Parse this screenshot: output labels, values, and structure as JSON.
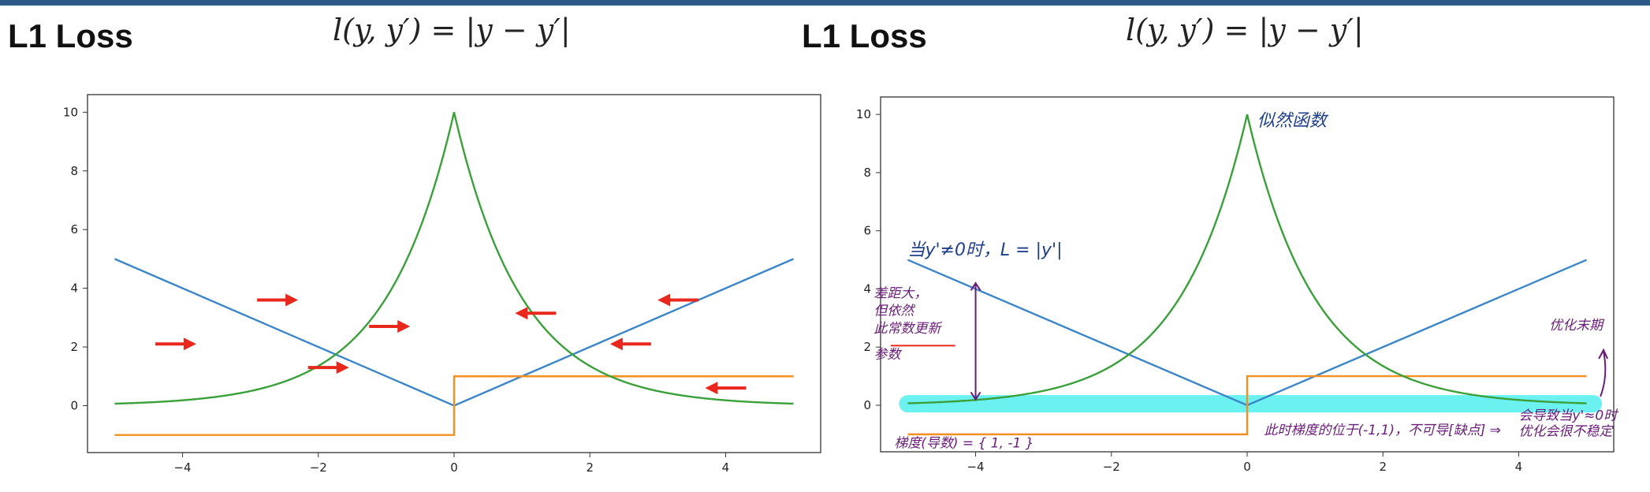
{
  "slide": {
    "left_heading": "L1 Loss",
    "left_formula": "l(y, y′) = |y − y′|",
    "right_heading": "L1 Loss",
    "right_formula": "l(y, y′) = |y − y′|"
  },
  "colors": {
    "loss": "#3a86c8",
    "gradient": "#f39020",
    "likelihood": "#3aa03a",
    "arrow": "#e8281c",
    "ink_blue": "#1e3f8a",
    "ink_purple": "#6a1d78",
    "highlight": "#5df0f0"
  },
  "chart_data": [
    {
      "type": "line",
      "title": "",
      "xlabel": "",
      "ylabel": "",
      "xlim": [
        -5.4,
        5.4
      ],
      "ylim": [
        -1.6,
        10.6
      ],
      "x_ticks": [
        -4,
        -2,
        0,
        2,
        4
      ],
      "y_ticks": [
        0,
        2,
        4,
        6,
        8,
        10
      ],
      "grid": false,
      "series": [
        {
          "kind": "abs",
          "x": [
            -5,
            0,
            5
          ],
          "y": [
            5,
            0,
            5
          ]
        },
        {
          "kind": "sign",
          "x": [
            -5,
            0,
            0,
            5
          ],
          "y": [
            -1,
            -1,
            1,
            1
          ]
        },
        {
          "kind": "exp",
          "x": [
            -5,
            0,
            5
          ],
          "y": [
            0.067,
            10,
            0.067
          ]
        }
      ],
      "annotations": {
        "arrows": [
          {
            "x": -4.1,
            "y": 2.1,
            "dir": "right"
          },
          {
            "x": -2.6,
            "y": 3.6,
            "dir": "right"
          },
          {
            "x": -0.95,
            "y": 2.7,
            "dir": "right"
          },
          {
            "x": -1.85,
            "y": 1.3,
            "dir": "right"
          },
          {
            "x": 1.2,
            "y": 3.15,
            "dir": "left"
          },
          {
            "x": 2.6,
            "y": 2.1,
            "dir": "left"
          },
          {
            "x": 3.3,
            "y": 3.6,
            "dir": "left"
          },
          {
            "x": 4.0,
            "y": 0.6,
            "dir": "left"
          }
        ]
      }
    },
    {
      "type": "line",
      "title": "",
      "xlabel": "",
      "ylabel": "",
      "xlim": [
        -5.4,
        5.4
      ],
      "ylim": [
        -1.6,
        10.6
      ],
      "x_ticks": [
        -4,
        -2,
        0,
        2,
        4
      ],
      "y_ticks": [
        0,
        2,
        4,
        6,
        8,
        10
      ],
      "grid": false,
      "series": [
        {
          "kind": "abs",
          "x": [
            -5,
            0,
            5
          ],
          "y": [
            5,
            0,
            5
          ]
        },
        {
          "kind": "sign",
          "x": [
            -5,
            0,
            0,
            5
          ],
          "y": [
            -1,
            -1,
            1,
            1
          ]
        },
        {
          "kind": "exp",
          "x": [
            -5,
            0,
            5
          ],
          "y": [
            0.067,
            10,
            0.067
          ]
        }
      ],
      "annotations": {
        "handwritten": [
          {
            "text": "似然函数",
            "x": 0.15,
            "y": 9.6,
            "ink": "blue"
          },
          {
            "text": "当y'≠0时，L = |y'|",
            "x": -5.0,
            "y": 5.15,
            "ink": "blue"
          },
          {
            "text": "差距大，",
            "x": -5.5,
            "y": 3.7,
            "ink": "purple"
          },
          {
            "text": "但依然",
            "x": -5.5,
            "y": 3.1,
            "ink": "purple"
          },
          {
            "text": "此常数更新",
            "x": -5.5,
            "y": 2.5,
            "ink": "purple"
          },
          {
            "text": "参数",
            "x": -5.5,
            "y": 1.6,
            "ink": "purple"
          },
          {
            "text": "优化末期",
            "x": 4.45,
            "y": 2.6,
            "ink": "purple"
          },
          {
            "text": "梯度(导数) = { 1, -1 }",
            "x": -5.2,
            "y": -1.45,
            "ink": "purple"
          },
          {
            "text": "此时梯度的位于(-1,1)，不可导[缺点] ⇒",
            "x": 0.25,
            "y": -1.0,
            "ink": "purple"
          },
          {
            "text": "会导致当y'≈0时",
            "x": 4.0,
            "y": -0.5,
            "ink": "purple"
          },
          {
            "text": "优化会很不稳定",
            "x": 4.0,
            "y": -1.05,
            "ink": "purple"
          }
        ]
      }
    }
  ]
}
